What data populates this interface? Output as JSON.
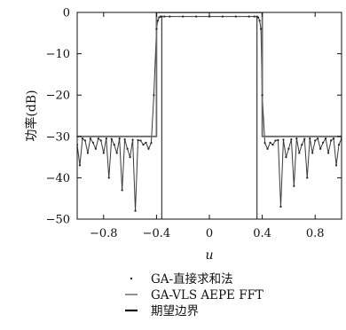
{
  "chart_data": {
    "type": "line",
    "title": "",
    "xlabel": "u",
    "ylabel": "功率(dB)",
    "xlim": [
      -1.0,
      1.0
    ],
    "ylim": [
      -50,
      0
    ],
    "xticks": [
      -0.8,
      -0.4,
      0,
      0.4,
      0.8
    ],
    "xtick_labels": [
      "−0.8",
      "−0.4",
      "0",
      "0.4",
      "0.8"
    ],
    "yticks": [
      0,
      -10,
      -20,
      -30,
      -40,
      -50
    ],
    "ytick_labels": [
      "0",
      "−10",
      "−20",
      "−30",
      "−40",
      "−50"
    ],
    "grid": false,
    "legend_position": "bottom-center",
    "series": [
      {
        "name": "GA-直接求和法",
        "style": "dots",
        "x": [
          -1.0,
          -0.98,
          -0.96,
          -0.94,
          -0.92,
          -0.9,
          -0.88,
          -0.86,
          -0.84,
          -0.82,
          -0.8,
          -0.78,
          -0.76,
          -0.74,
          -0.72,
          -0.7,
          -0.68,
          -0.66,
          -0.64,
          -0.62,
          -0.6,
          -0.58,
          -0.56,
          -0.54,
          -0.52,
          -0.5,
          -0.48,
          -0.46,
          -0.44,
          -0.42,
          -0.4,
          -0.39,
          -0.38,
          -0.37,
          -0.36,
          -0.34,
          -0.3,
          -0.2,
          -0.1,
          0,
          0.1,
          0.2,
          0.3,
          0.34,
          0.36,
          0.37,
          0.38,
          0.39,
          0.4,
          0.42,
          0.44,
          0.46,
          0.48,
          0.5,
          0.52,
          0.54,
          0.56,
          0.58,
          0.6,
          0.62,
          0.64,
          0.66,
          0.68,
          0.7,
          0.72,
          0.74,
          0.76,
          0.78,
          0.8,
          0.82,
          0.84,
          0.86,
          0.88,
          0.9,
          0.92,
          0.94,
          0.96,
          0.98,
          1.0
        ],
        "y": [
          -32,
          -37,
          -30.5,
          -31,
          -34,
          -30.5,
          -31.5,
          -33,
          -30.5,
          -31,
          -34,
          -30.5,
          -40,
          -30.6,
          -32,
          -34,
          -30.5,
          -43,
          -30.7,
          -33,
          -35,
          -30.8,
          -48,
          -30.9,
          -31,
          -32,
          -31.5,
          -33,
          -31.6,
          -20,
          -4,
          -2,
          -1.2,
          -1,
          -1,
          -1,
          -1,
          -1,
          -1,
          -1,
          -1,
          -1,
          -1,
          -1,
          -1,
          -1.2,
          -2,
          -4,
          -20,
          -31.6,
          -33,
          -31.5,
          -32,
          -31,
          -30.9,
          -47,
          -30.8,
          -35,
          -33,
          -30.7,
          -42,
          -30.5,
          -34,
          -32,
          -30.6,
          -40,
          -30.5,
          -34,
          -31,
          -30.5,
          -33,
          -31.5,
          -30.5,
          -34,
          -31,
          -30.5,
          -37,
          -32,
          -30.5
        ]
      },
      {
        "name": "GA-VLS AEPE FFT",
        "style": "thin-line",
        "x": [
          -1.0,
          -0.98,
          -0.96,
          -0.94,
          -0.92,
          -0.9,
          -0.88,
          -0.86,
          -0.84,
          -0.82,
          -0.8,
          -0.78,
          -0.76,
          -0.74,
          -0.72,
          -0.7,
          -0.68,
          -0.66,
          -0.64,
          -0.62,
          -0.6,
          -0.58,
          -0.56,
          -0.54,
          -0.52,
          -0.5,
          -0.48,
          -0.46,
          -0.44,
          -0.42,
          -0.4,
          -0.39,
          -0.38,
          -0.37,
          -0.36,
          -0.34,
          -0.3,
          -0.2,
          -0.1,
          0,
          0.1,
          0.2,
          0.3,
          0.34,
          0.36,
          0.37,
          0.38,
          0.39,
          0.4,
          0.42,
          0.44,
          0.46,
          0.48,
          0.5,
          0.52,
          0.54,
          0.56,
          0.58,
          0.6,
          0.62,
          0.64,
          0.66,
          0.68,
          0.7,
          0.72,
          0.74,
          0.76,
          0.78,
          0.8,
          0.82,
          0.84,
          0.86,
          0.88,
          0.9,
          0.92,
          0.94,
          0.96,
          0.98,
          1.0
        ],
        "y": [
          -32,
          -37,
          -30.5,
          -31,
          -34,
          -30.5,
          -31.5,
          -33,
          -30.5,
          -31,
          -34,
          -30.5,
          -40,
          -30.6,
          -32,
          -34,
          -30.5,
          -43,
          -30.7,
          -33,
          -35,
          -30.8,
          -48,
          -30.9,
          -31,
          -32,
          -31.5,
          -33,
          -31.6,
          -20,
          -4,
          -2,
          -1.2,
          -1,
          -1,
          -1,
          -1,
          -1,
          -1,
          -1,
          -1,
          -1,
          -1,
          -1,
          -1,
          -1.2,
          -2,
          -4,
          -20,
          -31.6,
          -33,
          -31.5,
          -32,
          -31,
          -30.9,
          -47,
          -30.8,
          -35,
          -33,
          -30.7,
          -42,
          -30.5,
          -34,
          -32,
          -30.6,
          -40,
          -30.5,
          -34,
          -31,
          -30.5,
          -33,
          -31.5,
          -30.5,
          -34,
          -31,
          -30.5,
          -37,
          -32,
          -30.5
        ]
      },
      {
        "name": "期望边界",
        "style": "thick-line",
        "x": [
          -1.0,
          -0.4,
          -0.4,
          0.4,
          0.4,
          1.0
        ],
        "y": [
          -30,
          -30,
          0,
          0,
          -30,
          -30
        ]
      }
    ],
    "extra_segments": [
      {
        "x": [
          -0.36,
          -0.36
        ],
        "y": [
          -50,
          -1
        ]
      },
      {
        "x": [
          0.36,
          0.36
        ],
        "y": [
          -50,
          -1
        ]
      }
    ]
  }
}
